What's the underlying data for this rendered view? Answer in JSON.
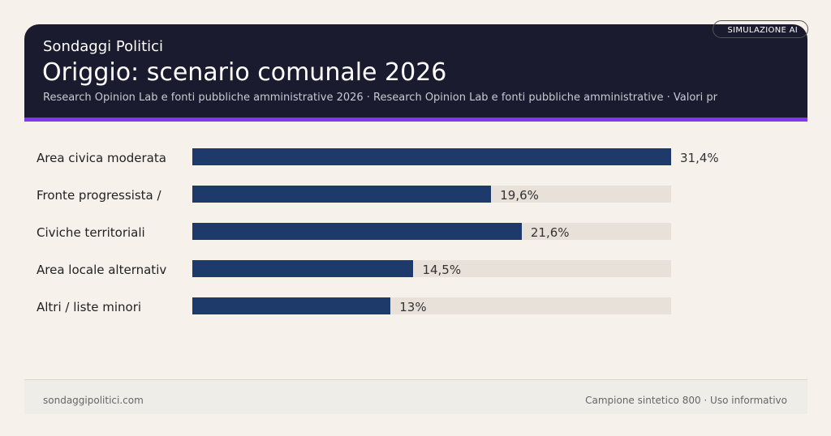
{
  "header": {
    "brand": "Sondaggi Politici",
    "title": "Origgio: scenario comunale 2026",
    "subtitle": "Research Opinion Lab e fonti pubbliche amministrative 2026 · Research Opinion Lab e fonti pubbliche amministrative · Valori pr",
    "badge": "SIMULAZIONE AI"
  },
  "chart_data": {
    "type": "bar",
    "orientation": "horizontal",
    "categories": [
      "Area civica moderata",
      "Fronte progressista /",
      "Civiche territoriali",
      "Area locale alternativ",
      "Altri / liste minori"
    ],
    "values": [
      31.4,
      19.6,
      21.6,
      14.5,
      13
    ],
    "value_labels": [
      "31,4%",
      "19,6%",
      "21,6%",
      "14,5%",
      "13%"
    ],
    "xlim": [
      0,
      31.4
    ],
    "unit": "%",
    "colors": {
      "bar": "#1e3a6b",
      "track": "#e7e1da"
    }
  },
  "footer": {
    "left": "sondaggipolitici.com",
    "right": "Campione sintetico 800 · Uso informativo"
  },
  "colors": {
    "header": "#1b1b2f",
    "accent": "#7c3aed",
    "background": "#f6f1eb"
  }
}
